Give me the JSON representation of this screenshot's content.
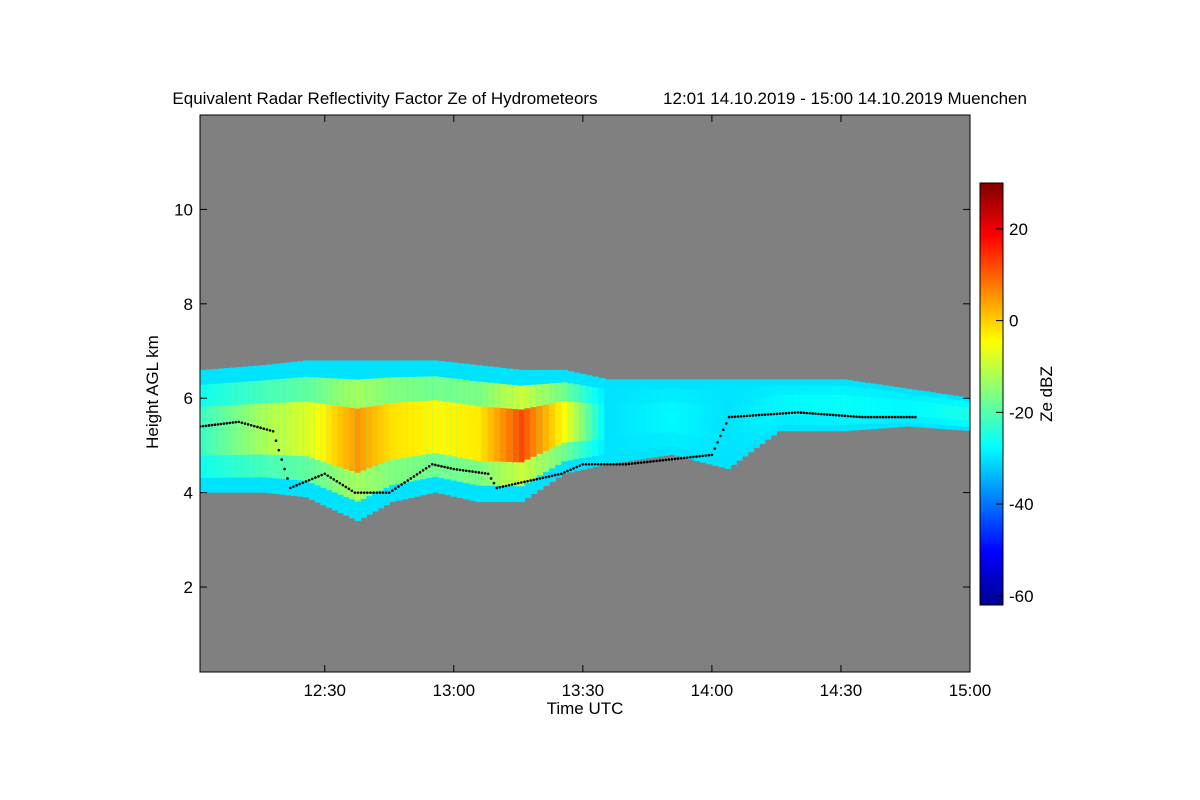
{
  "colors": {
    "background": "#808080",
    "contour_line": "#000000",
    "colormap": [
      "#00008f",
      "#0000ff",
      "#0080ff",
      "#00ffff",
      "#80ff80",
      "#ffff00",
      "#ff8000",
      "#ff0000",
      "#800000"
    ]
  },
  "chart_data": {
    "type": "heatmap",
    "title": "Equivalent Radar Reflectivity Factor Ze of Hydrometeors",
    "subtitle": "12:01 14.10.2019 - 15:00 14.10.2019 Muenchen",
    "xlabel": "Time UTC",
    "ylabel": "Height AGL km",
    "x_range": [
      "12:01",
      "15:00"
    ],
    "ylim": [
      0.2,
      12
    ],
    "xticks": [
      "12:30",
      "13:00",
      "13:30",
      "14:00",
      "14:30",
      "15:00"
    ],
    "yticks": [
      2,
      4,
      6,
      8,
      10
    ],
    "colorbar": {
      "label": "Ze dBZ",
      "range": [
        -62,
        30
      ],
      "ticks": [
        20,
        0,
        -20,
        -40,
        -60
      ]
    },
    "cloud_layer": [
      {
        "time": "12:01",
        "base_km": 4.0,
        "top_km": 6.6,
        "ze_dbz": -22
      },
      {
        "time": "12:15",
        "base_km": 4.0,
        "top_km": 6.7,
        "ze_dbz": -12
      },
      {
        "time": "12:25",
        "base_km": 3.9,
        "top_km": 6.8,
        "ze_dbz": -8
      },
      {
        "time": "12:37",
        "base_km": 3.4,
        "top_km": 6.8,
        "ze_dbz": 5
      },
      {
        "time": "12:45",
        "base_km": 3.8,
        "top_km": 6.8,
        "ze_dbz": -2
      },
      {
        "time": "12:55",
        "base_km": 4.0,
        "top_km": 6.8,
        "ze_dbz": -4
      },
      {
        "time": "13:05",
        "base_km": 3.8,
        "top_km": 6.7,
        "ze_dbz": -3
      },
      {
        "time": "13:15",
        "base_km": 3.8,
        "top_km": 6.6,
        "ze_dbz": 12
      },
      {
        "time": "13:25",
        "base_km": 4.4,
        "top_km": 6.6,
        "ze_dbz": -5
      },
      {
        "time": "13:35",
        "base_km": 4.6,
        "top_km": 6.4,
        "ze_dbz": -30
      },
      {
        "time": "13:50",
        "base_km": 4.8,
        "top_km": 6.4,
        "ze_dbz": -28
      },
      {
        "time": "14:03",
        "base_km": 4.5,
        "top_km": 6.4,
        "ze_dbz": -30
      },
      {
        "time": "14:15",
        "base_km": 5.3,
        "top_km": 6.4,
        "ze_dbz": -28
      },
      {
        "time": "14:30",
        "base_km": 5.3,
        "top_km": 6.4,
        "ze_dbz": -27
      },
      {
        "time": "14:45",
        "base_km": 5.4,
        "top_km": 6.2,
        "ze_dbz": -28
      },
      {
        "time": "15:00",
        "base_km": 5.3,
        "top_km": 6.0,
        "ze_dbz": -25
      }
    ],
    "line_series": [
      {
        "time": "12:01",
        "height_km": 5.4
      },
      {
        "time": "12:10",
        "height_km": 5.5
      },
      {
        "time": "12:18",
        "height_km": 5.3
      },
      {
        "time": "12:22",
        "height_km": 4.1
      },
      {
        "time": "12:30",
        "height_km": 4.4
      },
      {
        "time": "12:37",
        "height_km": 4.0
      },
      {
        "time": "12:45",
        "height_km": 4.0
      },
      {
        "time": "12:50",
        "height_km": 4.3
      },
      {
        "time": "12:55",
        "height_km": 4.6
      },
      {
        "time": "13:00",
        "height_km": 4.5
      },
      {
        "time": "13:08",
        "height_km": 4.4
      },
      {
        "time": "13:10",
        "height_km": 4.1
      },
      {
        "time": "13:15",
        "height_km": 4.2
      },
      {
        "time": "13:25",
        "height_km": 4.4
      },
      {
        "time": "13:30",
        "height_km": 4.6
      },
      {
        "time": "13:40",
        "height_km": 4.6
      },
      {
        "time": "13:50",
        "height_km": 4.7
      },
      {
        "time": "14:00",
        "height_km": 4.8
      },
      {
        "time": "14:04",
        "height_km": 5.6
      },
      {
        "time": "14:20",
        "height_km": 5.7
      },
      {
        "time": "14:35",
        "height_km": 5.6
      },
      {
        "time": "14:48",
        "height_km": 5.6
      }
    ]
  }
}
